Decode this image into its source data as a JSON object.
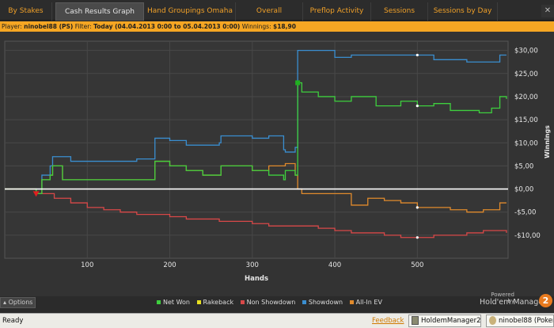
{
  "tabs": [
    {
      "label": "By Stakes"
    },
    {
      "label": "Cash Results Graph"
    },
    {
      "label": "Hand Groupings Omaha"
    },
    {
      "label": "Overall"
    },
    {
      "label": "Preflop Activity"
    },
    {
      "label": "Sessions"
    },
    {
      "label": "Sessions by Day"
    }
  ],
  "tab_close": "✕",
  "filter": {
    "player_label": "Player:",
    "player": "ninobel88 (PS)",
    "filter_label": "Filter:",
    "filter": "Today (04.04.2013 0:00 to 05.04.2013 0:00)",
    "winnings_label": "Winnings:",
    "winnings": "$18,90"
  },
  "options_label": "Options",
  "powered_by": "Powered by",
  "brand": "Hold'em Manager",
  "brand_badge": "2",
  "status": {
    "ready": "Ready",
    "feedback": "Feedback",
    "task1": "HoldemManager2",
    "task2": "ninobel88 (Poker"
  },
  "colors": {
    "net_won": "#3ecf3e",
    "rakeback": "#e8e020",
    "non_showdown": "#d84848",
    "showdown": "#3a8ed0",
    "all_in_ev": "#e08a2c",
    "accent": "#f5a623"
  },
  "chart_data": {
    "type": "line",
    "xlabel": "Hands",
    "ylabel": "Winnings",
    "xlim": [
      0,
      610
    ],
    "ylim": [
      -15,
      32
    ],
    "x_ticks": [
      100,
      200,
      300,
      400,
      500
    ],
    "y_ticks": [
      30,
      25,
      20,
      15,
      10,
      5,
      0,
      -5,
      -10
    ],
    "y_tick_labels": [
      "$30,00",
      "$25,00",
      "$20,00",
      "$15,00",
      "$10,00",
      "$5,00",
      "$0,00",
      "-$5,00",
      "-$10,00"
    ],
    "grid": true,
    "legend": "bottom",
    "series": [
      {
        "name": "Net Won",
        "color_key": "net_won",
        "x": [
          0,
          30,
          38,
          45,
          55,
          58,
          70,
          80,
          100,
          120,
          140,
          160,
          180,
          182,
          200,
          220,
          240,
          260,
          262,
          280,
          300,
          320,
          338,
          340,
          352,
          355,
          360,
          380,
          400,
          420,
          450,
          480,
          500,
          520,
          540,
          560,
          575,
          590,
          600,
          608
        ],
        "y": [
          0,
          0,
          -1,
          2,
          3,
          5,
          2,
          2,
          2,
          2,
          2,
          2,
          2,
          6,
          5,
          4,
          3,
          3,
          5,
          5,
          4,
          3,
          2,
          4,
          3,
          23,
          21,
          20,
          19,
          20,
          18,
          19,
          18,
          18.5,
          17,
          17,
          16.5,
          17.5,
          20,
          19.5
        ]
      },
      {
        "name": "Rakeback",
        "color_key": "rakeback",
        "x": [
          0,
          608
        ],
        "y": [
          0,
          0
        ]
      },
      {
        "name": "Non Showdown",
        "color_key": "non_showdown",
        "x": [
          0,
          20,
          38,
          60,
          80,
          100,
          120,
          140,
          160,
          180,
          200,
          220,
          240,
          260,
          280,
          300,
          320,
          340,
          355,
          380,
          400,
          420,
          440,
          460,
          480,
          500,
          520,
          540,
          560,
          580,
          600,
          608
        ],
        "y": [
          0,
          0,
          -1,
          -2,
          -3,
          -4,
          -4.5,
          -5,
          -5.5,
          -5.5,
          -6,
          -6.5,
          -6.5,
          -7,
          -7,
          -7.5,
          -8,
          -8,
          -8,
          -8.5,
          -9,
          -9.5,
          -9.5,
          -10,
          -10.5,
          -10.5,
          -10,
          -10,
          -9.5,
          -9,
          -9,
          -9.5
        ]
      },
      {
        "name": "Showdown",
        "color_key": "showdown",
        "x": [
          0,
          40,
          45,
          55,
          58,
          70,
          80,
          100,
          120,
          140,
          160,
          180,
          182,
          200,
          220,
          240,
          260,
          262,
          280,
          300,
          320,
          338,
          340,
          352,
          355,
          360,
          400,
          420,
          440,
          460,
          480,
          500,
          520,
          540,
          560,
          580,
          600,
          608
        ],
        "y": [
          0,
          0,
          3,
          5,
          7,
          7,
          6,
          6,
          6,
          6,
          6.5,
          6.5,
          11,
          10.5,
          9.5,
          9.5,
          10,
          11.5,
          11.5,
          11,
          11.5,
          8.5,
          8,
          9,
          30,
          30,
          28.5,
          29,
          29,
          29,
          29,
          29,
          28,
          28,
          27.5,
          27.5,
          29,
          29
        ]
      },
      {
        "name": "All-In EV",
        "color_key": "all_in_ev",
        "x": [
          0,
          38,
          45,
          55,
          58,
          70,
          80,
          100,
          120,
          140,
          160,
          180,
          182,
          200,
          220,
          240,
          260,
          262,
          280,
          300,
          320,
          340,
          352,
          355,
          360,
          400,
          420,
          440,
          460,
          480,
          500,
          520,
          540,
          560,
          580,
          600,
          608
        ],
        "y": [
          0,
          -1,
          2,
          3,
          5,
          2,
          2,
          2,
          2,
          2,
          2,
          2,
          6,
          5,
          4,
          3,
          3,
          5,
          5,
          4,
          5,
          5.5,
          3,
          0,
          -1,
          -1,
          -3.5,
          -2,
          -2.5,
          -3,
          -4,
          -4,
          -4.5,
          -5,
          -4.5,
          -3,
          -3
        ]
      }
    ]
  }
}
